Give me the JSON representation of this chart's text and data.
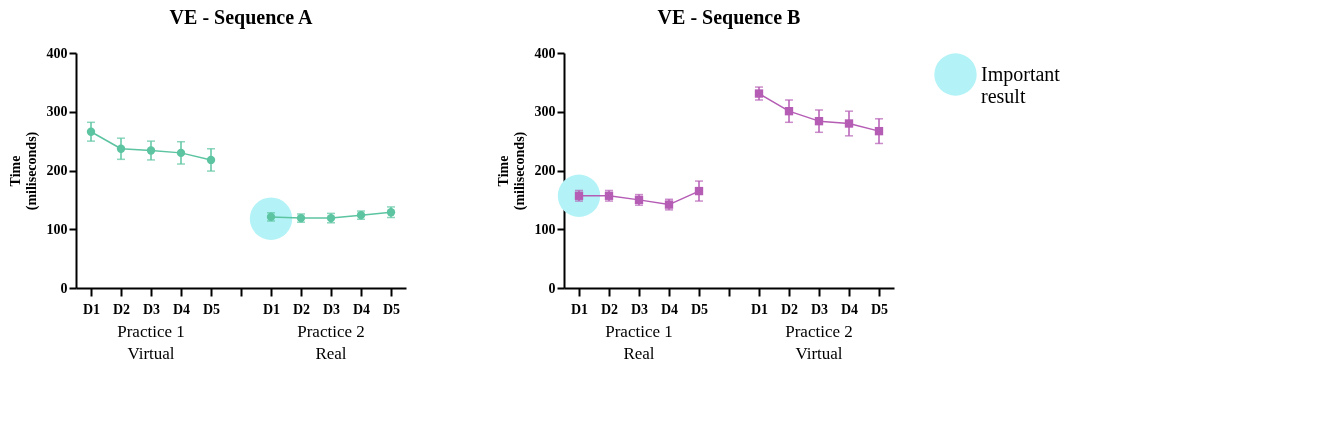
{
  "chart_data": [
    {
      "type": "line",
      "title": "VE - Sequence A",
      "ylabel": "Time\n(miliseconds)",
      "categories": [
        "D1",
        "D2",
        "D3",
        "D4",
        "D5",
        null,
        "D1",
        "D2",
        "D3",
        "D4",
        "D5"
      ],
      "ylim": [
        0,
        400
      ],
      "yticks": [
        0,
        100,
        200,
        300,
        400
      ],
      "grid": false,
      "annotations": [
        "Practice 1\nVirtual",
        "Practice 2\nReal"
      ],
      "series": [
        {
          "type": "scatter",
          "color": "#b3f3f7",
          "values": [
            null,
            null,
            null,
            null,
            null,
            null,
            118,
            null,
            null,
            null,
            null
          ]
        },
        {
          "marker": "circle",
          "color": "#5cc4a0",
          "values": [
            266,
            237,
            234,
            230,
            218,
            null,
            121,
            119,
            119,
            124,
            129
          ],
          "errors": [
            16,
            18,
            16,
            19,
            19,
            null,
            7,
            7,
            8,
            7,
            9
          ]
        }
      ]
    },
    {
      "type": "line",
      "title": "VE - Sequence B",
      "ylabel": "Time\n(miliseconds)",
      "categories": [
        "D1",
        "D2",
        "D3",
        "D4",
        "D5",
        null,
        "D1",
        "D2",
        "D3",
        "D4",
        "D5"
      ],
      "ylim": [
        0,
        400
      ],
      "yticks": [
        0,
        100,
        200,
        300,
        400
      ],
      "grid": false,
      "legend": "right",
      "annotations": [
        "Practice 1\nReal",
        "Practice 2\nVirtual"
      ],
      "series": [
        {
          "type": "scatter",
          "name": "Important result",
          "color": "#b3f3f7",
          "values": [
            157,
            null,
            null,
            null,
            null,
            null,
            null,
            null,
            null,
            null,
            null
          ]
        },
        {
          "marker": "square",
          "color": "#b55db5",
          "values": [
            157,
            157,
            150,
            142,
            165,
            null,
            331,
            301,
            284,
            280,
            267
          ],
          "errors": [
            9,
            9,
            9,
            9,
            17,
            null,
            11,
            19,
            19,
            21,
            21
          ]
        }
      ]
    }
  ]
}
